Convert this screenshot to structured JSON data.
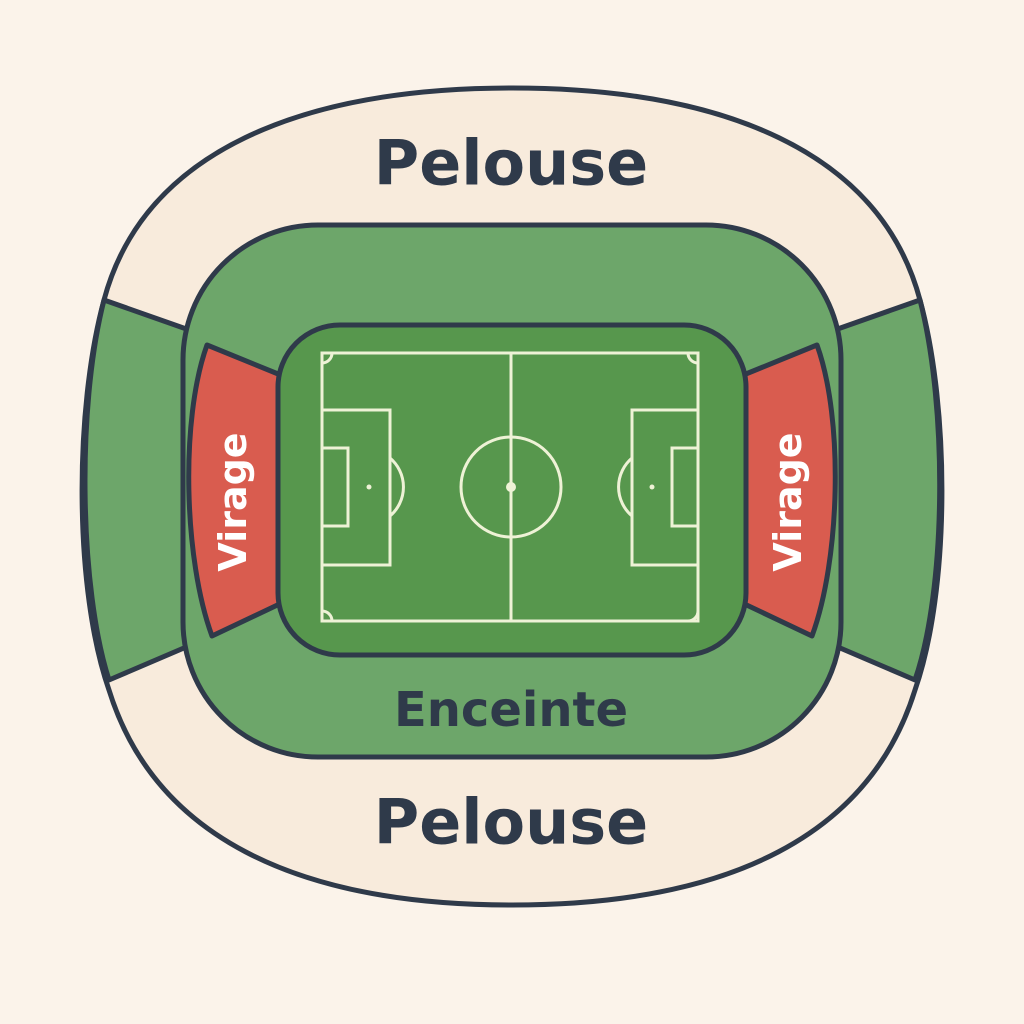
{
  "map": {
    "zones": {
      "pelouse_top": {
        "label": "Pelouse",
        "color": "#f8ebdc"
      },
      "pelouse_bottom": {
        "label": "Pelouse",
        "color": "#f8ebdc"
      },
      "enceinte": {
        "label": "Enceinte",
        "color": "#6da66a"
      },
      "side_stands": {
        "color": "#6da66a"
      },
      "virage_left": {
        "label": "Virage",
        "color": "#d95c4f"
      },
      "virage_right": {
        "label": "Virage",
        "color": "#d95c4f"
      },
      "pitch": {
        "color": "#57974d"
      }
    },
    "outline_color": "#2f3a4a",
    "pitch_line_color": "#eef2d6"
  }
}
